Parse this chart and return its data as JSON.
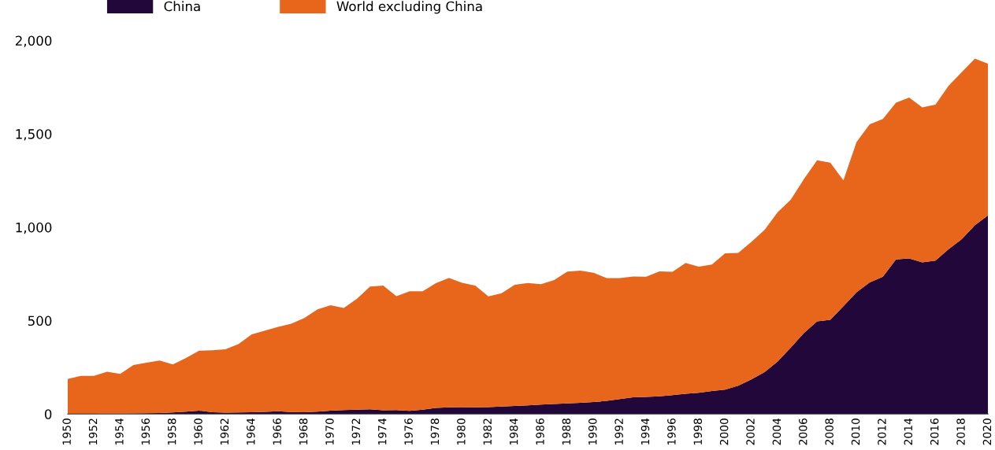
{
  "chart_data": {
    "type": "area",
    "stacked": true,
    "x": [
      1950,
      1951,
      1952,
      1953,
      1954,
      1955,
      1956,
      1957,
      1958,
      1959,
      1960,
      1961,
      1962,
      1963,
      1964,
      1965,
      1966,
      1967,
      1968,
      1969,
      1970,
      1971,
      1972,
      1973,
      1974,
      1975,
      1976,
      1977,
      1978,
      1979,
      1980,
      1981,
      1982,
      1983,
      1984,
      1985,
      1986,
      1987,
      1988,
      1989,
      1990,
      1991,
      1992,
      1993,
      1994,
      1995,
      1996,
      1997,
      1998,
      1999,
      2000,
      2001,
      2002,
      2003,
      2004,
      2005,
      2006,
      2007,
      2008,
      2009,
      2010,
      2011,
      2012,
      2013,
      2014,
      2015,
      2016,
      2017,
      2018,
      2019,
      2020
    ],
    "series": [
      {
        "name": "China",
        "color": "#22083a",
        "values": [
          1,
          1,
          1,
          2,
          2,
          3,
          4,
          5,
          8,
          13,
          18,
          9,
          7,
          8,
          9,
          12,
          15,
          10,
          9,
          13,
          18,
          21,
          23,
          25,
          20,
          21,
          17,
          23,
          33,
          36,
          37,
          36,
          37,
          40,
          43,
          46,
          50,
          54,
          57,
          60,
          64,
          70,
          80,
          90,
          92,
          95,
          101,
          108,
          114,
          123,
          131,
          152,
          185,
          224,
          281,
          356,
          434,
          496,
          504,
          577,
          652,
          705,
          735,
          828,
          833,
          812,
          821,
          883,
          936,
          1011,
          1064
        ]
      },
      {
        "name": "World excluding China",
        "color": "#e8651c",
        "values": [
          186,
          203,
          203,
          224,
          213,
          259,
          271,
          281,
          257,
          287,
          321,
          332,
          339,
          367,
          417,
          435,
          451,
          473,
          505,
          547,
          564,
          547,
          594,
          657,
          668,
          610,
          640,
          634,
          667,
          693,
          665,
          652,
          593,
          607,
          649,
          655,
          645,
          663,
          705,
          708,
          692,
          658,
          648,
          646,
          643,
          669,
          660,
          701,
          675,
          677,
          729,
          711,
          737,
          762,
          799,
          792,
          824,
          863,
          842,
          674,
          804,
          846,
          845,
          839,
          861,
          830,
          836,
          875,
          894,
          892,
          812
        ]
      }
    ],
    "xlim": [
      1950,
      2020
    ],
    "xticks": [
      1950,
      1952,
      1954,
      1956,
      1958,
      1960,
      1962,
      1964,
      1966,
      1968,
      1970,
      1972,
      1974,
      1976,
      1978,
      1980,
      1982,
      1984,
      1986,
      1988,
      1990,
      1992,
      1994,
      1996,
      1998,
      2000,
      2002,
      2004,
      2006,
      2008,
      2010,
      2012,
      2014,
      2016,
      2018,
      2020
    ],
    "ylim": [
      0,
      2000
    ],
    "yticks": [
      0,
      {
        "value": 500,
        "label": "500"
      },
      {
        "value": 1000,
        "label": "1,000"
      },
      {
        "value": 1500,
        "label": "1,500"
      },
      {
        "value": 2000,
        "label": "2,000"
      }
    ],
    "grid": false,
    "legend": "top left"
  }
}
